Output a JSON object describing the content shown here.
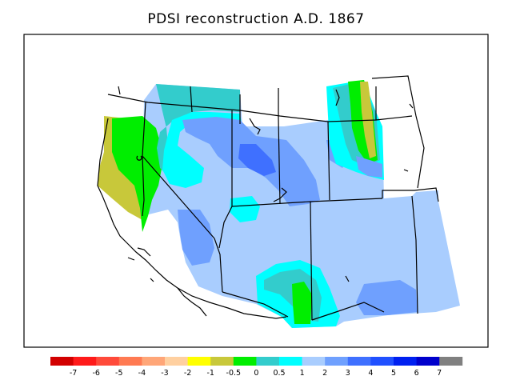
{
  "title": "PDSI reconstruction A.D. 1867",
  "legend": {
    "labels": [
      "-7",
      "-6",
      "-5",
      "-4",
      "-3",
      "-2",
      "-1",
      "-0.5",
      "0",
      "0.5",
      "1",
      "2",
      "3",
      "4",
      "5",
      "6",
      "7"
    ],
    "colors": [
      "#d20000",
      "#ff1a1a",
      "#ff4a3a",
      "#ff7a52",
      "#ffa678",
      "#ffd0a0",
      "#ffff00",
      "#c8c83a",
      "#00ee00",
      "#33cccc",
      "#00ffff",
      "#a9cdfe",
      "#6fa0fe",
      "#3f70ff",
      "#2050ff",
      "#0020f0",
      "#0000cc",
      "#808080"
    ]
  },
  "map": {
    "field_colors": {
      "base": "#a9cdfe",
      "mid": "#6fa0fe",
      "dark": "#3f70ff",
      "cyan": "#00ffff",
      "teal": "#33cccc",
      "green": "#00ee00",
      "olive": "#c8c83a"
    }
  }
}
